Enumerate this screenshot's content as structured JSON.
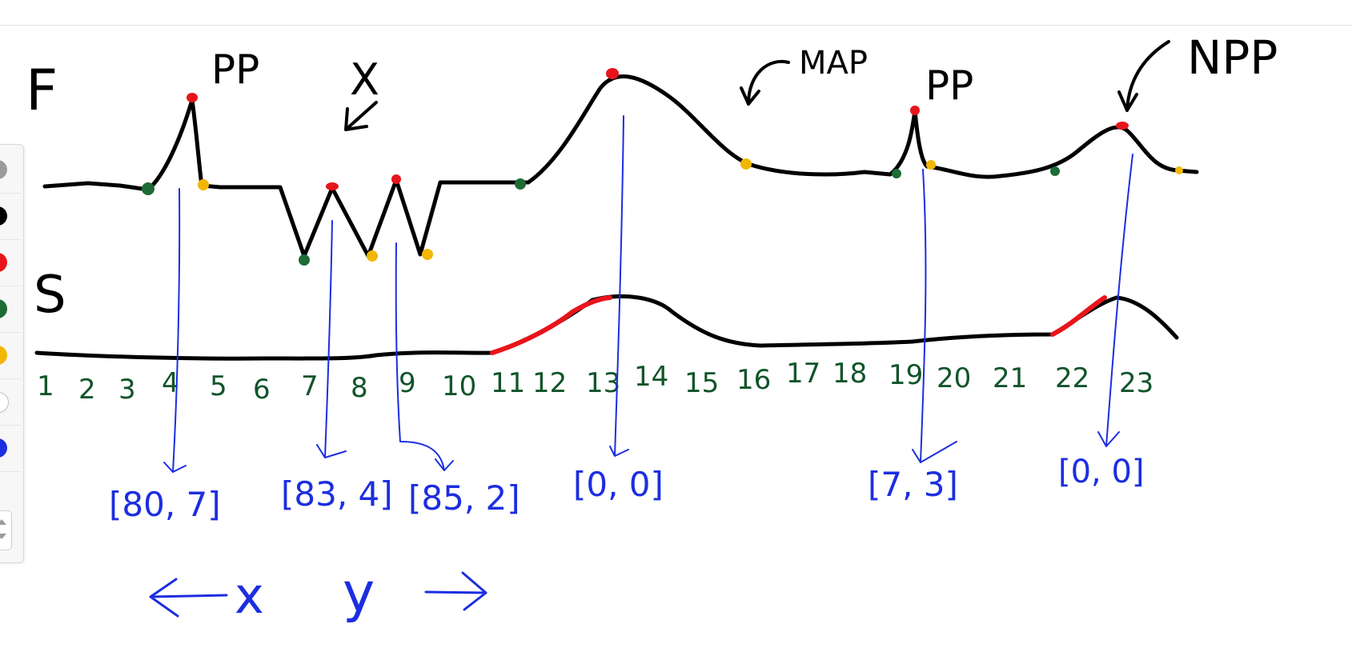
{
  "labels": {
    "f_curve": "F",
    "s_curve": "S",
    "x_mark": "X",
    "pp_1": "PP",
    "map": "MAP",
    "pp_2": "PP",
    "npp": "NPP",
    "x_left": "x",
    "y_right": "y"
  },
  "axis_numbers": [
    "1",
    "2",
    "3",
    "4",
    "5",
    "6",
    "7",
    "8",
    "9",
    "10",
    "11",
    "12",
    "13",
    "14",
    "15",
    "16",
    "17",
    "18",
    "19",
    "20",
    "21",
    "22",
    "23"
  ],
  "brackets": [
    "[80, 7]",
    "[83, 4]",
    "[85, 2]",
    "[0, 0]",
    "[7, 3]",
    "[0, 0]"
  ],
  "palette": {
    "swatches": [
      {
        "name": "grey",
        "color": "#9b9b9b"
      },
      {
        "name": "black",
        "color": "#000000"
      },
      {
        "name": "red",
        "color": "#e8141b"
      },
      {
        "name": "green",
        "color": "#1e6b35"
      },
      {
        "name": "yellow",
        "color": "#f2b705"
      },
      {
        "name": "white",
        "color": "#ffffff"
      },
      {
        "name": "blue",
        "color": "#1c2ee0"
      }
    ]
  },
  "colors": {
    "ink_black": "#000000",
    "ink_blue": "#1c2ee0",
    "ink_red": "#e8141b",
    "ink_green": "#1e6b35",
    "ink_yellow": "#f2b705",
    "axis_green": "#11542a"
  }
}
